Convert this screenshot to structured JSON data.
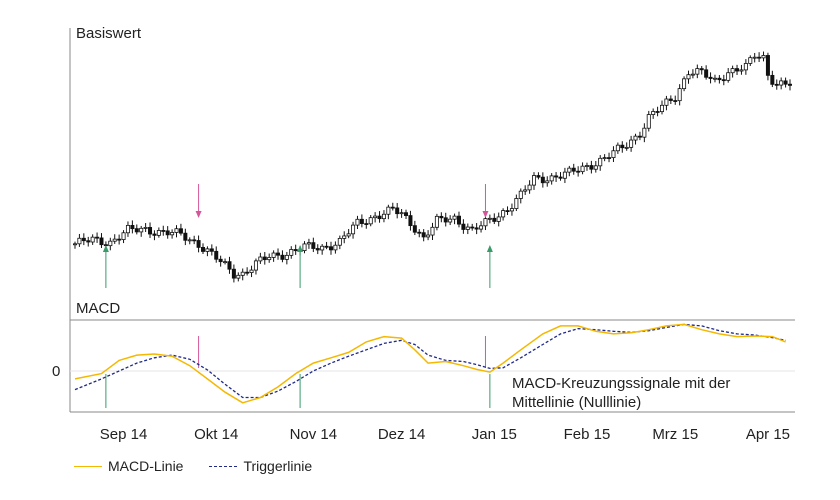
{
  "chart_data": {
    "type": "line",
    "panels": {
      "price": {
        "label": "Basiswert",
        "ylim": [
          0,
          100
        ]
      },
      "macd": {
        "label": "MACD",
        "zero_label": "0",
        "ylim": [
          -10,
          10
        ]
      }
    },
    "x_tick_labels": [
      "Sep 14",
      "Okt 14",
      "Nov 14",
      "Dez 14",
      "Jan 15",
      "Feb 15",
      "Mrz 15",
      "Apr 15"
    ],
    "x_tick_positions": [
      11,
      32,
      54,
      74,
      95,
      116,
      136,
      157
    ],
    "x_range": [
      0,
      162
    ],
    "annotation": "MACD-Kreuzungssignale mit der Mittellinie (Nulllinie)",
    "signals": [
      {
        "type": "buy",
        "x": 7
      },
      {
        "type": "sell",
        "x": 28
      },
      {
        "type": "buy",
        "x": 51
      },
      {
        "type": "sell",
        "x": 93
      },
      {
        "type": "buy",
        "x": 94
      }
    ],
    "price_anchors": [
      [
        0,
        32
      ],
      [
        4,
        34
      ],
      [
        8,
        33
      ],
      [
        12,
        39
      ],
      [
        16,
        40
      ],
      [
        20,
        38
      ],
      [
        24,
        37
      ],
      [
        28,
        32
      ],
      [
        31,
        26
      ],
      [
        34,
        20
      ],
      [
        36,
        16
      ],
      [
        38,
        16
      ],
      [
        41,
        21
      ],
      [
        44,
        25
      ],
      [
        48,
        27
      ],
      [
        52,
        30
      ],
      [
        56,
        30
      ],
      [
        60,
        33
      ],
      [
        64,
        43
      ],
      [
        68,
        47
      ],
      [
        72,
        50
      ],
      [
        74,
        48
      ],
      [
        77,
        41
      ],
      [
        79,
        35
      ],
      [
        82,
        44
      ],
      [
        86,
        46
      ],
      [
        90,
        39
      ],
      [
        93,
        43
      ],
      [
        95,
        46
      ],
      [
        98,
        51
      ],
      [
        101,
        58
      ],
      [
        104,
        67
      ],
      [
        108,
        68
      ],
      [
        112,
        70
      ],
      [
        116,
        74
      ],
      [
        120,
        78
      ],
      [
        124,
        84
      ],
      [
        128,
        92
      ],
      [
        130,
        100
      ],
      [
        132,
        104
      ],
      [
        136,
        112
      ],
      [
        139,
        125
      ],
      [
        142,
        124
      ],
      [
        145,
        120
      ],
      [
        148,
        125
      ],
      [
        152,
        127
      ],
      [
        154,
        134
      ],
      [
        156,
        133
      ],
      [
        157,
        124
      ],
      [
        159,
        118
      ],
      [
        162,
        118
      ]
    ],
    "macd_line": [
      [
        0,
        -1.5
      ],
      [
        6,
        -0.5
      ],
      [
        10,
        2
      ],
      [
        14,
        3
      ],
      [
        18,
        3.2
      ],
      [
        22,
        2.8
      ],
      [
        26,
        1
      ],
      [
        30,
        -1.5
      ],
      [
        34,
        -4
      ],
      [
        38,
        -6
      ],
      [
        42,
        -5
      ],
      [
        46,
        -3
      ],
      [
        50,
        -0.5
      ],
      [
        54,
        1.5
      ],
      [
        58,
        2.5
      ],
      [
        62,
        3.5
      ],
      [
        66,
        5.5
      ],
      [
        70,
        6.5
      ],
      [
        74,
        6.2
      ],
      [
        77,
        4
      ],
      [
        80,
        1.5
      ],
      [
        84,
        1.8
      ],
      [
        88,
        1
      ],
      [
        91,
        0.3
      ],
      [
        94,
        -0.2
      ],
      [
        97,
        1.5
      ],
      [
        101,
        4
      ],
      [
        106,
        7
      ],
      [
        110,
        8.5
      ],
      [
        114,
        8.5
      ],
      [
        118,
        7.5
      ],
      [
        122,
        7
      ],
      [
        126,
        7.2
      ],
      [
        130,
        7.8
      ],
      [
        134,
        8.5
      ],
      [
        138,
        8.8
      ],
      [
        142,
        7.8
      ],
      [
        146,
        7
      ],
      [
        150,
        6.5
      ],
      [
        154,
        6.6
      ],
      [
        158,
        6.5
      ],
      [
        161,
        5.5
      ]
    ],
    "trigger_line": [
      [
        0,
        -3.5
      ],
      [
        6,
        -1.5
      ],
      [
        10,
        0
      ],
      [
        14,
        1.5
      ],
      [
        18,
        2.5
      ],
      [
        22,
        3
      ],
      [
        26,
        2.2
      ],
      [
        30,
        0.2
      ],
      [
        34,
        -2.5
      ],
      [
        38,
        -5
      ],
      [
        42,
        -5
      ],
      [
        46,
        -3.8
      ],
      [
        50,
        -2
      ],
      [
        54,
        0
      ],
      [
        58,
        1.5
      ],
      [
        62,
        2.8
      ],
      [
        66,
        4
      ],
      [
        70,
        5.2
      ],
      [
        74,
        5.8
      ],
      [
        77,
        5
      ],
      [
        80,
        3
      ],
      [
        84,
        2
      ],
      [
        88,
        1.8
      ],
      [
        91,
        1.2
      ],
      [
        94,
        0.5
      ],
      [
        97,
        0.6
      ],
      [
        101,
        2.5
      ],
      [
        106,
        5
      ],
      [
        110,
        7
      ],
      [
        114,
        8
      ],
      [
        118,
        7.8
      ],
      [
        122,
        7.5
      ],
      [
        126,
        7.3
      ],
      [
        130,
        7.6
      ],
      [
        134,
        8.2
      ],
      [
        138,
        8.8
      ],
      [
        142,
        8.5
      ],
      [
        146,
        7.6
      ],
      [
        150,
        7
      ],
      [
        154,
        6.8
      ],
      [
        158,
        6.3
      ],
      [
        161,
        5.8
      ]
    ]
  },
  "legend": {
    "macd_label": "MACD-Linie",
    "trigger_label": "Triggerlinie"
  },
  "colors": {
    "macd": "#f5b800",
    "trigger": "#1f2a8a",
    "buy_arrow": "#3a9b6a",
    "sell_arrow": "#d4569a",
    "candle": "#111111",
    "axis": "#888888",
    "grid": "#e6e6e6"
  }
}
